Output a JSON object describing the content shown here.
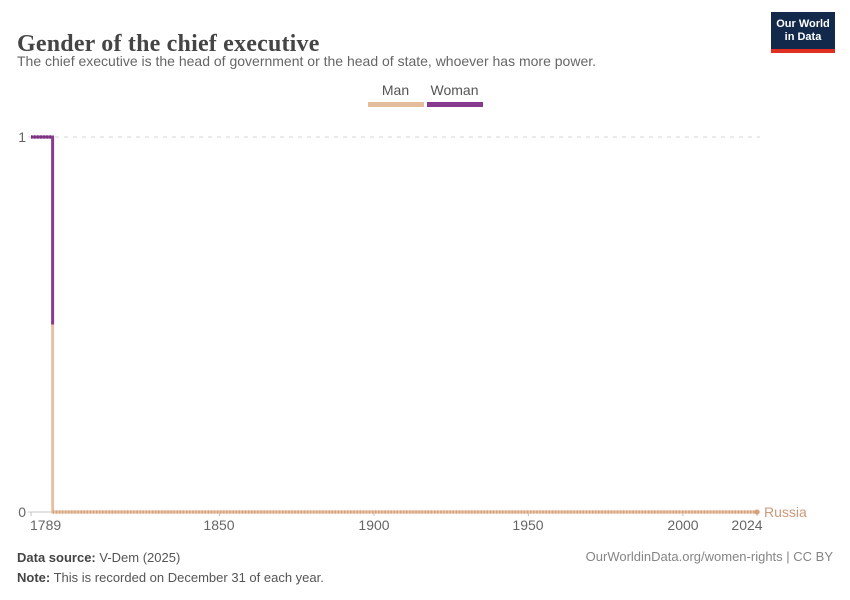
{
  "header": {
    "title": "Gender of the chief executive",
    "subtitle": "The chief executive is the head of government or the head of state, whoever has more power."
  },
  "logo": {
    "line1": "Our World",
    "line2": "in Data",
    "bg_color": "#12294b",
    "bar_color": "#e02e21"
  },
  "legend": {
    "items": [
      {
        "label": "Man",
        "color": "#e3bc9c"
      },
      {
        "label": "Woman",
        "color": "#873a8d"
      }
    ]
  },
  "chart_data": {
    "type": "line",
    "title": "Gender of the chief executive",
    "entity": "Russia",
    "entity_color": "#cd9878",
    "x_range": [
      1789,
      2024
    ],
    "y_range": [
      0,
      1
    ],
    "x_ticks": [
      1789,
      1850,
      1900,
      1950,
      2000,
      2024
    ],
    "y_ticks": [
      0,
      1
    ],
    "grid": "dashed line at y=1, solid axis at y=0",
    "legend_position": "top-center",
    "series": [
      {
        "name": "Woman",
        "color": "#883a8d",
        "marker_color": "#742f7b",
        "points": [
          [
            1789,
            1
          ],
          [
            1796,
            1
          ],
          [
            1796,
            0.5
          ]
        ]
      },
      {
        "name": "Man",
        "color": "#e7c2a2",
        "marker_color": "#d6a27c",
        "end_marker": true,
        "points": [
          [
            1796,
            0.5
          ],
          [
            1796,
            0
          ],
          [
            2024,
            0
          ]
        ]
      }
    ],
    "annotation": "Woman is chief executive 1789-1796, Man 1796-2024 for Russia"
  },
  "footer": {
    "source_label": "Data source:",
    "source_text": " V-Dem (2025)",
    "note_label": "Note:",
    "note_text": " This is recorded on December 31 of each year.",
    "citation": "OurWorldinData.org/women-rights | CC BY"
  }
}
